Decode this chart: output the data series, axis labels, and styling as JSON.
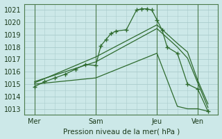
{
  "background_color": "#cce8e8",
  "grid_color": "#aacccc",
  "line_color": "#2d6a2d",
  "xlabel": "Pression niveau de la mer( hPa )",
  "ylim": [
    1012.5,
    1021.5
  ],
  "yticks": [
    1013,
    1014,
    1015,
    1016,
    1017,
    1018,
    1019,
    1020,
    1021
  ],
  "figsize": [
    3.2,
    2.0
  ],
  "dpi": 100,
  "xtick_labels": [
    "Mer",
    "Sam",
    "Jeu",
    "Ven"
  ],
  "xtick_positions": [
    0,
    36,
    72,
    96
  ],
  "xlim": [
    -6,
    108
  ],
  "vlines": [
    0,
    36,
    72,
    96
  ],
  "series0_x": [
    0,
    6,
    12,
    18,
    24,
    30,
    36,
    39,
    42,
    45,
    48,
    54,
    60,
    63,
    66,
    69,
    72,
    75,
    78,
    84,
    90,
    96,
    102
  ],
  "series0_y": [
    1014.8,
    1015.2,
    1015.5,
    1015.8,
    1016.2,
    1016.6,
    1016.5,
    1018.1,
    1018.6,
    1019.1,
    1019.3,
    1019.4,
    1021.0,
    1021.1,
    1021.1,
    1021.0,
    1020.2,
    1019.4,
    1018.0,
    1017.5,
    1015.0,
    1014.6,
    1012.8
  ],
  "series1_x": [
    0,
    36,
    72,
    84,
    90,
    96,
    102
  ],
  "series1_y": [
    1015.2,
    1016.8,
    1019.5,
    1018.0,
    1017.1,
    1015.1,
    1013.1
  ],
  "series2_x": [
    0,
    36,
    72,
    84,
    90,
    96,
    102
  ],
  "series2_y": [
    1015.1,
    1017.2,
    1019.8,
    1018.3,
    1017.6,
    1015.3,
    1013.4
  ],
  "series3_x": [
    0,
    36,
    72,
    84,
    90,
    96,
    102
  ],
  "series3_y": [
    1015.0,
    1015.5,
    1017.5,
    1013.2,
    1013.0,
    1013.0,
    1012.8
  ]
}
